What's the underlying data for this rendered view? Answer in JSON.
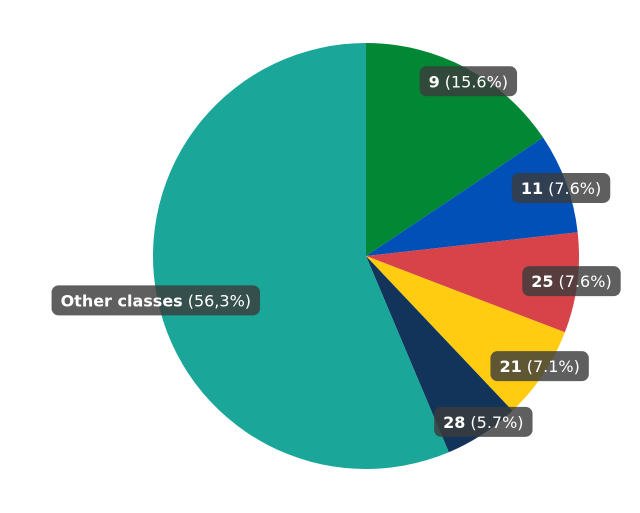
{
  "chart_data": {
    "type": "pie",
    "categories": [
      "9",
      "11",
      "25",
      "21",
      "28",
      "Other classes"
    ],
    "values": [
      15.6,
      7.6,
      7.6,
      7.1,
      5.7,
      56.3
    ],
    "value_labels": [
      "(15.6%)",
      "(7.6%)",
      "(7.6%)",
      "(7.1%)",
      "(5.7%)",
      "(56,3%)"
    ],
    "colors": [
      "#028834",
      "#0050b8",
      "#d8434a",
      "#ffcc12",
      "#12345a",
      "#1aa698"
    ]
  }
}
